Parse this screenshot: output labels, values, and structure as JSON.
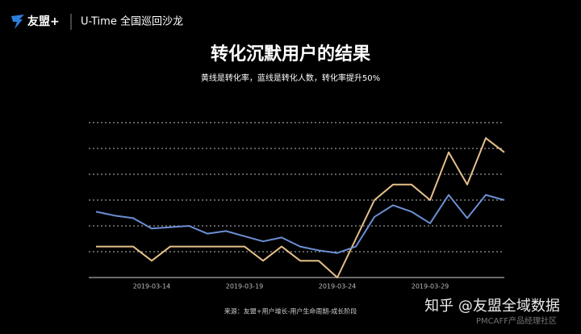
{
  "header": {
    "brand": "友盟+",
    "event": "U-Time 全国巡回沙龙"
  },
  "chart_data": {
    "type": "line",
    "title": "转化沉默用户的结果",
    "subtitle": "黄线是转化率，蓝线是转化人数，转化率提升50%",
    "categories": [
      null,
      null,
      null,
      "2019-03-14",
      null,
      null,
      null,
      null,
      "2019-03-19",
      null,
      null,
      null,
      null,
      "2019-03-24",
      null,
      null,
      null,
      null,
      "2019-03-29",
      null,
      null,
      null,
      null
    ],
    "series": [
      {
        "color": "#e6c08a",
        "values": [
          1.2,
          1.2,
          1.2,
          0.65,
          1.2,
          1.2,
          1.2,
          1.2,
          1.2,
          0.65,
          1.2,
          0.65,
          0.65,
          0,
          1.5,
          3.0,
          3.6,
          3.6,
          3.0,
          4.85,
          3.6,
          5.4,
          4.85
        ]
      },
      {
        "color": "#6b8fd3",
        "values": [
          2.55,
          2.4,
          2.3,
          1.9,
          1.95,
          2.0,
          1.7,
          1.8,
          1.6,
          1.4,
          1.55,
          1.2,
          1.05,
          0.95,
          1.2,
          2.35,
          2.8,
          2.55,
          2.1,
          3.2,
          2.3,
          3.2,
          3.0
        ]
      }
    ],
    "ylim": [
      0,
      6
    ],
    "yticks": [
      0,
      1,
      2,
      3,
      4,
      5,
      6
    ],
    "grid": true,
    "source": "来源：友盟+用户增长-用户生命周期-成长阶段"
  },
  "watermark": {
    "main": "知乎 @友盟全域数据",
    "sub": "PMCAFF产品经理社区"
  }
}
